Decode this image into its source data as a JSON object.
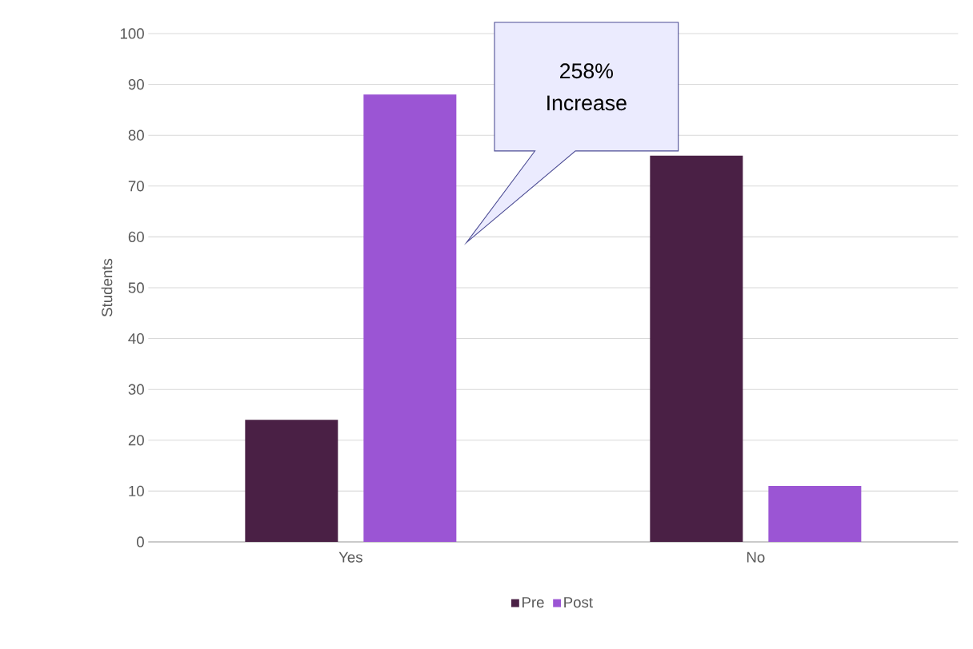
{
  "chart_data": {
    "type": "bar",
    "ylabel": "Students",
    "categories": [
      "Yes",
      "No"
    ],
    "series": [
      {
        "name": "Pre",
        "color": "#4a2045",
        "values": [
          24,
          76
        ]
      },
      {
        "name": "Post",
        "color": "#9b55d4",
        "values": [
          88,
          11
        ]
      }
    ],
    "ylim": [
      0,
      100
    ],
    "yticks": [
      0,
      10,
      20,
      30,
      40,
      50,
      60,
      70,
      80,
      90,
      100
    ],
    "grid": "y",
    "legend": "bottom",
    "annotations": [
      "258% Increase"
    ]
  }
}
